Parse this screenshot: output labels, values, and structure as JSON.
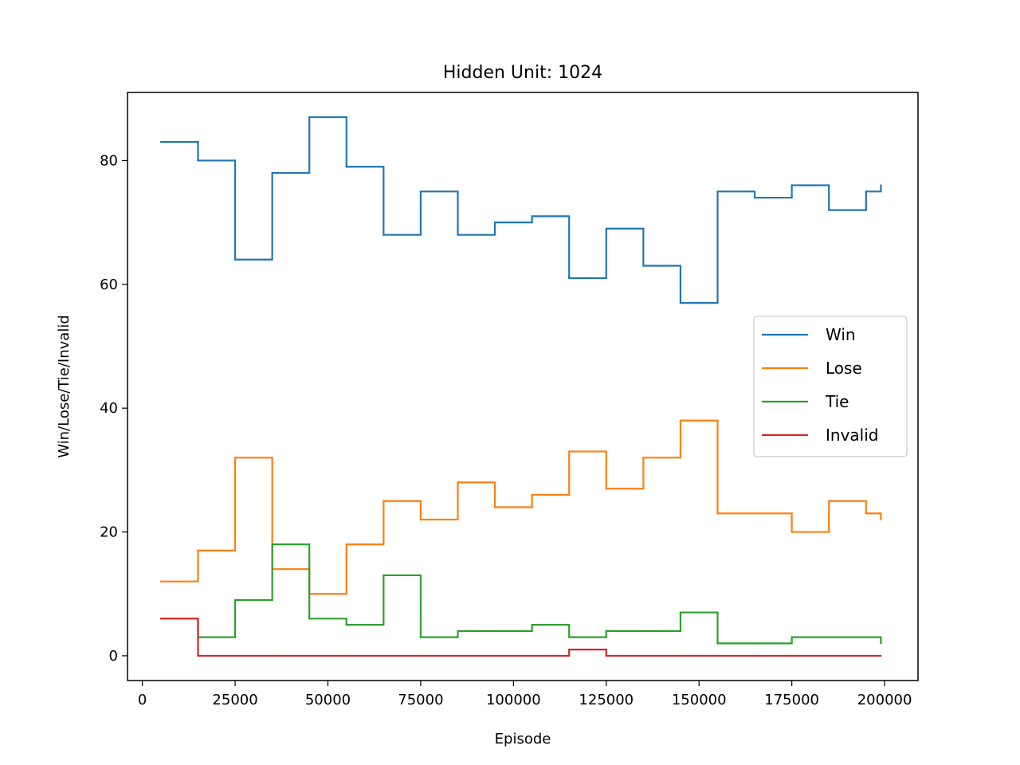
{
  "chart_data": {
    "type": "line",
    "title": "Hidden Unit: 1024",
    "xlabel": "Episode",
    "ylabel": "Win/Lose/Tie/Invalid",
    "xlim": [
      -4000,
      209000
    ],
    "ylim": [
      -4,
      91
    ],
    "x_ticks": [
      0,
      25000,
      50000,
      75000,
      100000,
      125000,
      150000,
      175000,
      200000
    ],
    "y_ticks": [
      0,
      20,
      40,
      60,
      80
    ],
    "grid": false,
    "legend_position": "center-right",
    "x": [
      5000,
      15000,
      25000,
      35000,
      45000,
      55000,
      65000,
      75000,
      85000,
      95000,
      105000,
      115000,
      125000,
      135000,
      145000,
      155000,
      165000,
      175000,
      185000,
      195000,
      199000
    ],
    "series": [
      {
        "name": "Win",
        "color": "#1f77b4",
        "step": "post",
        "values": [
          83,
          80,
          64,
          78,
          87,
          79,
          68,
          75,
          68,
          70,
          71,
          61,
          69,
          63,
          57,
          75,
          74,
          76,
          72,
          75,
          76
        ]
      },
      {
        "name": "Lose",
        "color": "#ff7f0e",
        "step": "post",
        "values": [
          12,
          17,
          32,
          14,
          10,
          18,
          25,
          22,
          28,
          24,
          26,
          33,
          27,
          32,
          38,
          23,
          23,
          20,
          25,
          23,
          22
        ]
      },
      {
        "name": "Tie",
        "color": "#2ca02c",
        "step": "post",
        "values": [
          6,
          3,
          9,
          18,
          6,
          5,
          13,
          3,
          4,
          4,
          5,
          3,
          4,
          4,
          7,
          2,
          2,
          3,
          3,
          3,
          2
        ]
      },
      {
        "name": "Invalid",
        "color": "#d62728",
        "step": "post",
        "values": [
          6,
          0,
          0,
          0,
          0,
          0,
          0,
          0,
          0,
          0,
          0,
          1,
          0,
          0,
          0,
          0,
          0,
          0,
          0,
          0,
          0
        ]
      }
    ]
  }
}
